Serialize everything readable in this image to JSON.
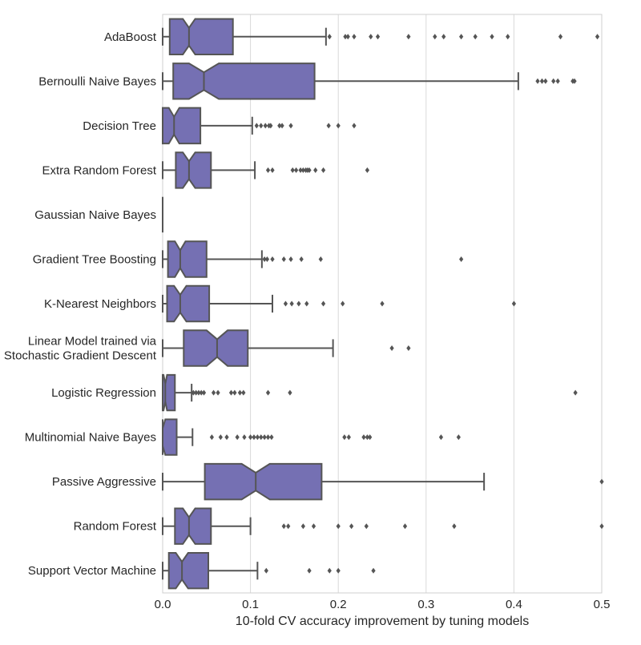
{
  "chart_data": {
    "type": "boxplot",
    "orientation": "horizontal",
    "notched": true,
    "title": "",
    "xlabel": "10-fold CV accuracy improvement by tuning models",
    "ylabel": "",
    "xlim": [
      0,
      0.5
    ],
    "xticks": [
      0.0,
      0.1,
      0.2,
      0.3,
      0.4,
      0.5
    ],
    "xtick_labels": [
      "0.0",
      "0.1",
      "0.2",
      "0.3",
      "0.4",
      "0.5"
    ],
    "grid": "vertical",
    "box_color": "#7570b3",
    "line_color": "#555555",
    "series": [
      {
        "name": "AdaBoost",
        "label_lines": [
          "AdaBoost"
        ],
        "whislo": 0.0,
        "q1": 0.008,
        "med": 0.03,
        "notch_lo": 0.023,
        "notch_hi": 0.037,
        "q3": 0.08,
        "whishi": 0.186,
        "fliers": [
          0.19,
          0.208,
          0.211,
          0.218,
          0.237,
          0.245,
          0.28,
          0.31,
          0.32,
          0.34,
          0.356,
          0.375,
          0.393,
          0.453,
          0.495
        ]
      },
      {
        "name": "Bernoulli Naive Bayes",
        "label_lines": [
          "Bernoulli Naive Bayes"
        ],
        "whislo": 0.0,
        "q1": 0.012,
        "med": 0.047,
        "notch_lo": 0.03,
        "notch_hi": 0.064,
        "q3": 0.173,
        "whishi": 0.405,
        "fliers": [
          0.427,
          0.432,
          0.436,
          0.445,
          0.45,
          0.467,
          0.469
        ]
      },
      {
        "name": "Decision Tree",
        "label_lines": [
          "Decision Tree"
        ],
        "whislo": 0.0,
        "q1": 0.0,
        "med": 0.013,
        "notch_lo": 0.007,
        "notch_hi": 0.019,
        "q3": 0.043,
        "whishi": 0.102,
        "fliers": [
          0.107,
          0.112,
          0.117,
          0.121,
          0.123,
          0.133,
          0.136,
          0.146,
          0.189,
          0.2,
          0.218
        ]
      },
      {
        "name": "Extra Random Forest",
        "label_lines": [
          "Extra Random Forest"
        ],
        "whislo": 0.0,
        "q1": 0.015,
        "med": 0.03,
        "notch_lo": 0.023,
        "notch_hi": 0.037,
        "q3": 0.055,
        "whishi": 0.105,
        "fliers": [
          0.12,
          0.125,
          0.148,
          0.152,
          0.157,
          0.16,
          0.163,
          0.165,
          0.167,
          0.174,
          0.183,
          0.233
        ]
      },
      {
        "name": "Gaussian Naive Bayes",
        "label_lines": [
          "Gaussian Naive Bayes"
        ],
        "whislo": 0.0,
        "q1": 0.0,
        "med": 0.0,
        "notch_lo": 0.0,
        "notch_hi": 0.0,
        "q3": 0.0,
        "whishi": 0.0,
        "fliers": []
      },
      {
        "name": "Gradient Tree Boosting",
        "label_lines": [
          "Gradient Tree Boosting"
        ],
        "whislo": 0.0,
        "q1": 0.006,
        "med": 0.02,
        "notch_lo": 0.014,
        "notch_hi": 0.026,
        "q3": 0.05,
        "whishi": 0.113,
        "fliers": [
          0.116,
          0.119,
          0.125,
          0.138,
          0.146,
          0.158,
          0.18,
          0.34
        ]
      },
      {
        "name": "K-Nearest Neighbors",
        "label_lines": [
          "K-Nearest Neighbors"
        ],
        "whislo": 0.0,
        "q1": 0.005,
        "med": 0.02,
        "notch_lo": 0.013,
        "notch_hi": 0.027,
        "q3": 0.053,
        "whishi": 0.125,
        "fliers": [
          0.14,
          0.147,
          0.155,
          0.164,
          0.183,
          0.205,
          0.25,
          0.4
        ]
      },
      {
        "name": "Linear Model trained via Stochastic Gradient Descent",
        "label_lines": [
          "Linear Model trained via",
          "Stochastic Gradient Descent"
        ],
        "whislo": 0.0,
        "q1": 0.024,
        "med": 0.062,
        "notch_lo": 0.05,
        "notch_hi": 0.074,
        "q3": 0.097,
        "whishi": 0.194,
        "fliers": [
          0.261,
          0.28
        ]
      },
      {
        "name": "Logistic Regression",
        "label_lines": [
          "Logistic Regression"
        ],
        "whislo": 0.0,
        "q1": 0.0,
        "med": 0.003,
        "notch_lo": 0.001,
        "notch_hi": 0.005,
        "q3": 0.014,
        "whishi": 0.033,
        "fliers": [
          0.035,
          0.038,
          0.041,
          0.044,
          0.047,
          0.058,
          0.063,
          0.078,
          0.082,
          0.088,
          0.092,
          0.12,
          0.145,
          0.47
        ]
      },
      {
        "name": "Multinomial Naive Bayes",
        "label_lines": [
          "Multinomial Naive Bayes"
        ],
        "whislo": 0.0,
        "q1": 0.0,
        "med": 0.0,
        "notch_lo": 0.0,
        "notch_hi": 0.003,
        "q3": 0.016,
        "whishi": 0.034,
        "fliers": [
          0.056,
          0.066,
          0.073,
          0.085,
          0.093,
          0.1,
          0.104,
          0.108,
          0.112,
          0.116,
          0.12,
          0.124,
          0.207,
          0.212,
          0.229,
          0.233,
          0.236,
          0.317,
          0.337
        ]
      },
      {
        "name": "Passive Aggressive",
        "label_lines": [
          "Passive Aggressive"
        ],
        "whislo": 0.0,
        "q1": 0.048,
        "med": 0.106,
        "notch_lo": 0.09,
        "notch_hi": 0.122,
        "q3": 0.181,
        "whishi": 0.366,
        "fliers": [
          0.5
        ]
      },
      {
        "name": "Random Forest",
        "label_lines": [
          "Random Forest"
        ],
        "whislo": 0.0,
        "q1": 0.014,
        "med": 0.03,
        "notch_lo": 0.023,
        "notch_hi": 0.037,
        "q3": 0.055,
        "whishi": 0.1,
        "fliers": [
          0.138,
          0.143,
          0.16,
          0.172,
          0.2,
          0.215,
          0.232,
          0.276,
          0.332,
          0.5
        ]
      },
      {
        "name": "Support Vector Machine",
        "label_lines": [
          "Support Vector Machine"
        ],
        "whislo": 0.0,
        "q1": 0.007,
        "med": 0.022,
        "notch_lo": 0.015,
        "notch_hi": 0.029,
        "q3": 0.052,
        "whishi": 0.108,
        "fliers": [
          0.118,
          0.167,
          0.19,
          0.2,
          0.24
        ]
      }
    ]
  }
}
